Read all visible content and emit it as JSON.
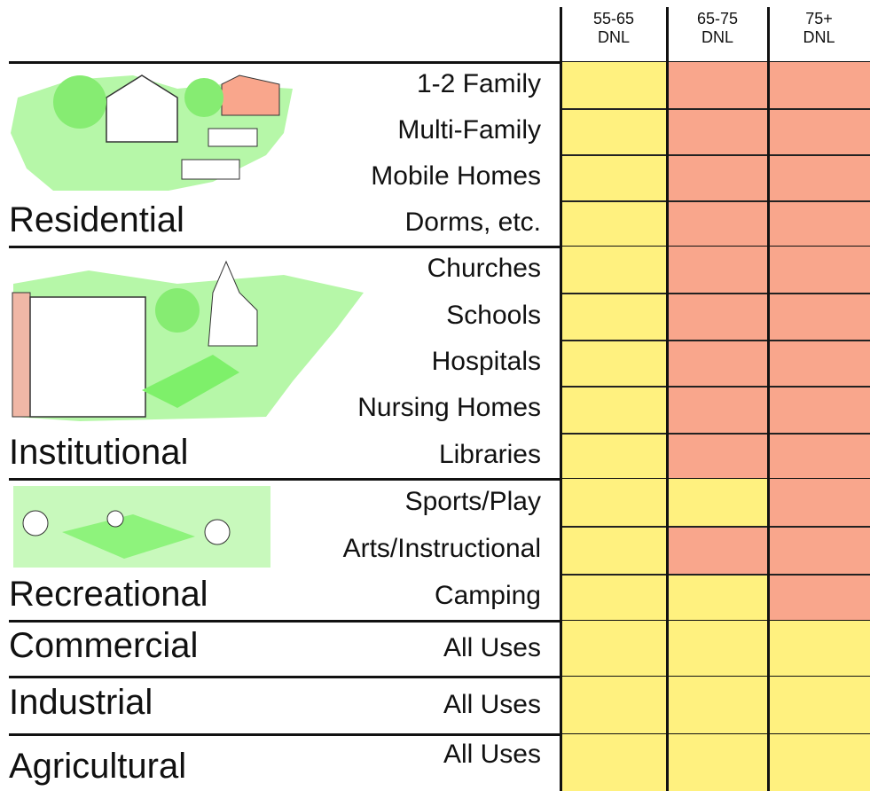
{
  "header": {
    "columns": [
      [
        "55-65",
        "DNL"
      ],
      [
        "65-75",
        "DNL"
      ],
      [
        "75+",
        "DNL"
      ]
    ]
  },
  "groups": [
    {
      "name": "Residential",
      "rows": [
        {
          "label": "1-2 Family",
          "cells": [
            "#fff17f",
            "#f9a68c",
            "#f9a68c"
          ]
        },
        {
          "label": "Multi-Family",
          "cells": [
            "#fff17f",
            "#f9a68c",
            "#f9a68c"
          ]
        },
        {
          "label": "Mobile Homes",
          "cells": [
            "#fff17f",
            "#f9a68c",
            "#f9a68c"
          ]
        },
        {
          "label": "Dorms, etc.",
          "cells": [
            "#fff17f",
            "#f9a68c",
            "#f9a68c"
          ]
        }
      ]
    },
    {
      "name": "Institutional",
      "rows": [
        {
          "label": "Churches",
          "cells": [
            "#fff17f",
            "#f9a68c",
            "#f9a68c"
          ]
        },
        {
          "label": "Schools",
          "cells": [
            "#fff17f",
            "#f9a68c",
            "#f9a68c"
          ]
        },
        {
          "label": "Hospitals",
          "cells": [
            "#fff17f",
            "#f9a68c",
            "#f9a68c"
          ]
        },
        {
          "label": "Nursing Homes",
          "cells": [
            "#fff17f",
            "#f9a68c",
            "#f9a68c"
          ]
        },
        {
          "label": "Libraries",
          "cells": [
            "#fff17f",
            "#f9a68c",
            "#f9a68c"
          ]
        }
      ]
    },
    {
      "name": "Recreational",
      "rows": [
        {
          "label": "Sports/Play",
          "cells": [
            "#fff17f",
            "#fff17f",
            "#f9a68c"
          ]
        },
        {
          "label": "Arts/Instructional",
          "cells": [
            "#fff17f",
            "#f9a68c",
            "#f9a68c"
          ]
        },
        {
          "label": "Camping",
          "cells": [
            "#fff17f",
            "#fff17f",
            "#f9a68c"
          ]
        }
      ]
    },
    {
      "name": "Commercial",
      "rows": [
        {
          "label": "All Uses",
          "cells": [
            "#fff17f",
            "#fff17f",
            "#fff17f"
          ]
        }
      ]
    },
    {
      "name": "Industrial",
      "rows": [
        {
          "label": "All Uses",
          "cells": [
            "#fff17f",
            "#fff17f",
            "#fff17f"
          ]
        }
      ]
    },
    {
      "name": "Agricultural",
      "rows": [
        {
          "label": "All Uses",
          "cells": [
            "#fff17f",
            "#fff17f",
            "#fff17f"
          ]
        }
      ]
    }
  ]
}
